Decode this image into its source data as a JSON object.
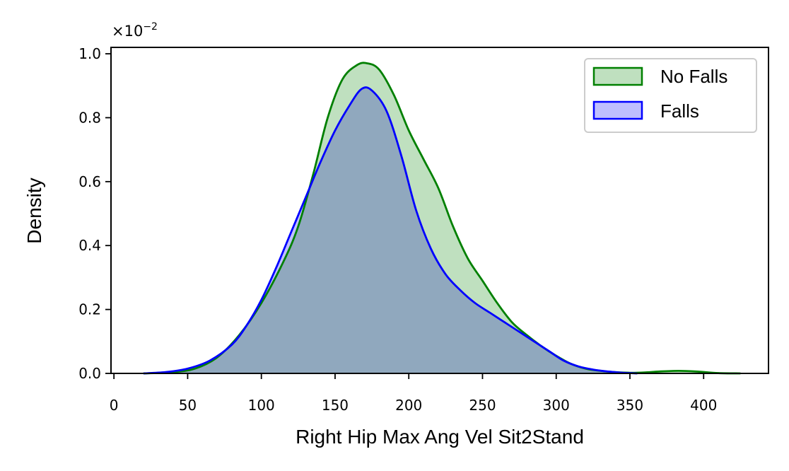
{
  "chart_data": {
    "type": "area",
    "xlabel": "Right Hip Max Ang Vel Sit2Stand",
    "ylabel": "Density",
    "y_offset_text": "×10",
    "y_offset_exponent": "−2",
    "xlim": [
      -2,
      444
    ],
    "ylim": [
      0,
      1.02
    ],
    "y_scale_factor": 0.01,
    "x_ticks": [
      0,
      50,
      100,
      150,
      200,
      250,
      300,
      350,
      400
    ],
    "y_ticks": [
      0.0,
      0.2,
      0.4,
      0.6,
      0.8,
      1.0
    ],
    "y_tick_labels": [
      "0.0",
      "0.2",
      "0.4",
      "0.6",
      "0.8",
      "1.0"
    ],
    "grid": false,
    "legend_position": "top-right",
    "series": [
      {
        "name": "No Falls",
        "stroke": "#008000",
        "fill": "#bfe0bf",
        "x": [
          20,
          40,
          55,
          70,
          85,
          100,
          115,
          125,
          135,
          145,
          155,
          165,
          172,
          180,
          190,
          200,
          210,
          220,
          230,
          240,
          250,
          260,
          270,
          280,
          290,
          300,
          310,
          320,
          330,
          340,
          350,
          360,
          370,
          383,
          395,
          410,
          425
        ],
        "y": [
          0.0,
          0.004,
          0.015,
          0.05,
          0.12,
          0.22,
          0.35,
          0.46,
          0.62,
          0.8,
          0.92,
          0.965,
          0.97,
          0.95,
          0.87,
          0.76,
          0.67,
          0.58,
          0.46,
          0.36,
          0.29,
          0.22,
          0.16,
          0.12,
          0.085,
          0.055,
          0.03,
          0.015,
          0.008,
          0.004,
          0.002,
          0.003,
          0.006,
          0.008,
          0.006,
          0.001,
          0.0
        ]
      },
      {
        "name": "Falls",
        "stroke": "#0000ff",
        "fill": "#bfbffe",
        "x": [
          20,
          35,
          50,
          65,
          80,
          90,
          100,
          110,
          120,
          130,
          140,
          150,
          160,
          168,
          175,
          185,
          195,
          205,
          215,
          225,
          235,
          245,
          255,
          265,
          275,
          285,
          295,
          305,
          315,
          325,
          335,
          345,
          355
        ],
        "y": [
          0.0,
          0.004,
          0.015,
          0.04,
          0.09,
          0.15,
          0.23,
          0.33,
          0.44,
          0.55,
          0.66,
          0.76,
          0.84,
          0.89,
          0.885,
          0.82,
          0.68,
          0.51,
          0.39,
          0.31,
          0.26,
          0.22,
          0.19,
          0.16,
          0.13,
          0.1,
          0.07,
          0.04,
          0.022,
          0.012,
          0.006,
          0.002,
          0.0
        ]
      }
    ]
  }
}
